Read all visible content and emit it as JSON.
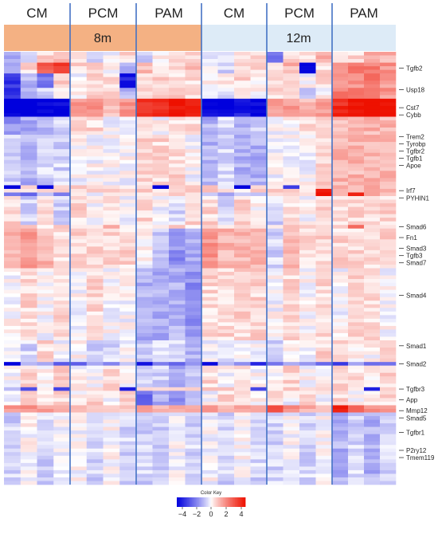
{
  "chart_data": {
    "type": "heatmap",
    "groups": [
      {
        "label": "CM",
        "age": "8m",
        "n_cols": 4
      },
      {
        "label": "PCM",
        "age": "8m",
        "n_cols": 4
      },
      {
        "label": "PAM",
        "age": "8m",
        "n_cols": 4
      },
      {
        "label": "CM",
        "age": "12m",
        "n_cols": 4
      },
      {
        "label": "PCM",
        "age": "12m",
        "n_cols": 4
      },
      {
        "label": "PAM",
        "age": "12m",
        "n_cols": 4
      }
    ],
    "ages": [
      {
        "label": "8m",
        "color": "#f4b183"
      },
      {
        "label": "12m",
        "color": "#ddebf7"
      }
    ],
    "n_rows": 120,
    "row_labels": [
      {
        "label": "Tgfb2",
        "row": 4
      },
      {
        "label": "Usp18",
        "row": 10
      },
      {
        "label": "Cst7",
        "row": 15
      },
      {
        "label": "Cybb",
        "row": 17
      },
      {
        "label": "Trem2",
        "row": 23
      },
      {
        "label": "Tyrobp",
        "row": 25
      },
      {
        "label": "Tgfbr2",
        "row": 27
      },
      {
        "label": "Tgfb1",
        "row": 29
      },
      {
        "label": "Apoe",
        "row": 31
      },
      {
        "label": "Irf7",
        "row": 38
      },
      {
        "label": "PYHIN1",
        "row": 40
      },
      {
        "label": "Smad6",
        "row": 48
      },
      {
        "label": "Fn1",
        "row": 51
      },
      {
        "label": "Smad3",
        "row": 54
      },
      {
        "label": "Tgfb3",
        "row": 56
      },
      {
        "label": "Smad7",
        "row": 58
      },
      {
        "label": "Smad4",
        "row": 67
      },
      {
        "label": "Smad1",
        "row": 81
      },
      {
        "label": "Smad2",
        "row": 86
      },
      {
        "label": "Tgfbr3",
        "row": 93
      },
      {
        "label": "App",
        "row": 96
      },
      {
        "label": "Mmp12",
        "row": 99
      },
      {
        "label": "Smad5",
        "row": 101
      },
      {
        "label": "Tgfbr1",
        "row": 105
      },
      {
        "label": "P2ry12",
        "row": 110
      },
      {
        "label": "Tmem119",
        "row": 112
      }
    ],
    "color_key": {
      "title": "Color Key",
      "ticks": [
        "-4",
        "-2",
        "0",
        "2",
        "4"
      ],
      "range": [
        -4,
        4
      ],
      "low_color": "#0000dd",
      "mid_color": "#ffffff",
      "high_color": "#ee1100"
    },
    "row_patterns": [
      {
        "rows": [
          0,
          2
        ],
        "values": [
          -1.0,
          -0.5,
          0.5,
          1.0,
          0.5,
          -0.5,
          0.0,
          0.5,
          -0.5,
          0.0,
          0.5,
          0.5,
          -0.5,
          0.0,
          0.5,
          0.5,
          -2.0,
          0.5,
          0.5,
          1.0,
          0.5,
          0.5,
          1.0,
          1.0
        ]
      },
      {
        "rows": [
          3,
          5
        ],
        "values": [
          -1.0,
          0.5,
          2.5,
          3.0,
          0.5,
          0.5,
          0.0,
          -1.0,
          1.0,
          0.5,
          0.5,
          1.0,
          0.0,
          -0.5,
          0.5,
          0.5,
          0.5,
          1.0,
          -3.5,
          0.5,
          1.5,
          2.0,
          2.0,
          1.5
        ]
      },
      {
        "rows": [
          6,
          9
        ],
        "values": [
          -3.0,
          -1.0,
          -2.0,
          0.5,
          0.0,
          0.5,
          0.5,
          -3.5,
          0.5,
          0.5,
          0.5,
          0.5,
          0.0,
          0.5,
          0.5,
          0.0,
          0.5,
          0.5,
          0.0,
          0.5,
          1.5,
          1.5,
          2.0,
          1.5
        ]
      },
      {
        "rows": [
          10,
          12
        ],
        "values": [
          -3.0,
          -1.0,
          -0.5,
          0.5,
          0.0,
          0.5,
          0.5,
          -1.0,
          0.5,
          0.5,
          1.0,
          0.5,
          -0.5,
          -0.5,
          0.5,
          0.0,
          0.5,
          0.5,
          -0.5,
          0.0,
          2.0,
          2.0,
          2.0,
          1.5
        ]
      },
      {
        "rows": [
          13,
          17
        ],
        "values": [
          -4.0,
          -4.0,
          -4.0,
          -4.0,
          1.5,
          1.5,
          1.0,
          1.5,
          3.5,
          3.5,
          4.0,
          4.0,
          -4.0,
          -4.0,
          -3.5,
          -4.0,
          1.5,
          1.5,
          1.0,
          1.5,
          3.5,
          4.0,
          4.5,
          4.0
        ]
      },
      {
        "rows": [
          18,
          22
        ],
        "values": [
          -1.5,
          -1.0,
          -1.0,
          -0.5,
          0.5,
          0.5,
          0.0,
          0.0,
          0.5,
          0.0,
          0.5,
          0.5,
          -1.0,
          -0.5,
          -1.0,
          -0.5,
          0.0,
          0.0,
          0.5,
          0.5,
          1.0,
          1.0,
          1.0,
          1.0
        ]
      },
      {
        "rows": [
          23,
          36
        ],
        "values": [
          -0.5,
          -1.0,
          -0.5,
          -0.5,
          0.0,
          0.0,
          0.0,
          0.0,
          0.5,
          0.5,
          0.5,
          0.0,
          -1.0,
          -0.5,
          -1.0,
          -1.0,
          0.0,
          0.0,
          0.0,
          0.5,
          1.0,
          1.0,
          1.0,
          1.0
        ]
      },
      {
        "rows": [
          37,
          37
        ],
        "values": [
          -4.0,
          0.5,
          -4.0,
          0.5,
          0.5,
          0.5,
          0.5,
          0.5,
          0.5,
          -4.0,
          0.5,
          0.5,
          0.5,
          -0.5,
          -4.0,
          0.5,
          0.5,
          -3.0,
          0.5,
          1.0,
          1.0,
          1.0,
          1.0,
          1.0
        ]
      },
      {
        "rows": [
          38,
          38
        ],
        "values": [
          0.5,
          0.5,
          1.0,
          0.5,
          0.5,
          0.5,
          0.5,
          0.5,
          0.5,
          0.5,
          0.5,
          0.5,
          0.5,
          0.5,
          0.5,
          0.5,
          0.5,
          0.5,
          0.5,
          4.0,
          1.0,
          1.0,
          1.0,
          1.0
        ]
      },
      {
        "rows": [
          39,
          39
        ],
        "values": [
          -2.0,
          -2.0,
          -1.0,
          -2.0,
          0.0,
          0.0,
          0.0,
          0.0,
          0.5,
          0.5,
          0.5,
          0.5,
          -1.0,
          -1.0,
          -1.0,
          -1.0,
          0.5,
          0.5,
          0.5,
          4.0,
          1.0,
          4.0,
          1.0,
          1.0
        ]
      },
      {
        "rows": [
          40,
          47
        ],
        "values": [
          0.5,
          -0.5,
          0.5,
          -0.5,
          0.5,
          0.0,
          0.5,
          0.0,
          0.5,
          0.0,
          -0.5,
          0.5,
          0.5,
          -0.5,
          0.5,
          0.0,
          -0.5,
          0.5,
          0.0,
          0.5,
          0.5,
          0.5,
          0.5,
          0.5
        ]
      },
      {
        "rows": [
          48,
          48
        ],
        "values": [
          0.5,
          0.5,
          0.5,
          0.5,
          0.5,
          0.5,
          1.0,
          0.5,
          0.5,
          0.5,
          0.5,
          0.5,
          0.5,
          0.5,
          0.5,
          0.5,
          0.5,
          0.5,
          0.5,
          0.5,
          0.5,
          2.5,
          0.5,
          0.5
        ]
      },
      {
        "rows": [
          49,
          59
        ],
        "values": [
          1.0,
          1.5,
          1.0,
          0.5,
          0.5,
          0.5,
          0.5,
          0.5,
          0.0,
          -0.5,
          -1.5,
          -1.0,
          1.5,
          1.0,
          1.0,
          1.0,
          -0.5,
          1.0,
          0.5,
          0.5,
          0.5,
          0.5,
          0.5,
          0.5
        ]
      },
      {
        "rows": [
          60,
          79
        ],
        "values": [
          0.0,
          0.5,
          0.0,
          0.5,
          0.0,
          0.5,
          0.0,
          0.0,
          -1.0,
          -1.0,
          -1.0,
          -1.5,
          0.5,
          0.5,
          0.5,
          0.5,
          0.0,
          0.5,
          0.0,
          0.5,
          0.0,
          0.5,
          0.5,
          0.0
        ]
      },
      {
        "rows": [
          80,
          85
        ],
        "values": [
          0.0,
          -0.5,
          0.5,
          0.0,
          0.0,
          -0.5,
          -0.5,
          0.0,
          -0.5,
          -0.5,
          -0.5,
          -1.0,
          0.0,
          -0.5,
          0.0,
          0.0,
          -0.5,
          0.0,
          0.0,
          0.5,
          0.5,
          0.0,
          0.0,
          0.5
        ]
      },
      {
        "rows": [
          86,
          86
        ],
        "values": [
          -4.0,
          -1.0,
          -1.0,
          -2.0,
          -2.0,
          -1.5,
          -1.5,
          -1.0,
          -4.0,
          -2.0,
          -2.0,
          -1.5,
          -4.0,
          -1.0,
          -1.5,
          -3.5,
          -2.0,
          -1.5,
          -1.0,
          -2.0,
          -3.0,
          -1.0,
          -2.0,
          -2.0
        ]
      },
      {
        "rows": [
          87,
          92
        ],
        "values": [
          0.0,
          0.5,
          0.0,
          0.5,
          0.0,
          0.0,
          0.5,
          0.0,
          -0.5,
          -0.5,
          -1.0,
          -0.5,
          0.5,
          0.0,
          0.5,
          0.0,
          0.0,
          0.5,
          0.0,
          0.0,
          0.5,
          0.5,
          0.0,
          0.5
        ]
      },
      {
        "rows": [
          93,
          93
        ],
        "values": [
          -1.0,
          -3.0,
          0.5,
          -3.0,
          0.5,
          0.5,
          0.5,
          -3.5,
          0.5,
          0.5,
          0.5,
          0.5,
          0.5,
          0.5,
          0.5,
          -3.0,
          0.5,
          0.5,
          0.5,
          0.5,
          0.5,
          0.5,
          -3.5,
          0.5
        ]
      },
      {
        "rows": [
          94,
          97
        ],
        "values": [
          0.0,
          0.5,
          0.0,
          0.5,
          0.0,
          0.5,
          0.0,
          0.5,
          -2.0,
          -1.0,
          -1.5,
          -1.0,
          0.0,
          0.5,
          0.5,
          0.0,
          0.5,
          0.0,
          0.5,
          0.0,
          0.5,
          0.0,
          0.5,
          0.5
        ]
      },
      {
        "rows": [
          98,
          99
        ],
        "values": [
          1.5,
          1.5,
          1.5,
          1.5,
          1.0,
          1.0,
          1.0,
          1.0,
          1.5,
          1.0,
          1.0,
          1.0,
          2.0,
          1.0,
          1.0,
          1.0,
          3.0,
          1.5,
          1.0,
          1.0,
          3.5,
          2.0,
          1.5,
          1.5
        ]
      },
      {
        "rows": [
          100,
          119
        ],
        "values": [
          -0.5,
          0.0,
          -0.5,
          0.0,
          0.0,
          -0.5,
          0.0,
          -0.5,
          -0.5,
          -0.5,
          0.0,
          -0.5,
          0.0,
          -0.5,
          0.0,
          -0.5,
          -0.5,
          0.0,
          -0.5,
          0.0,
          -1.0,
          -0.5,
          -1.0,
          -0.5
        ]
      }
    ],
    "xlabel": "",
    "ylabel": ""
  }
}
